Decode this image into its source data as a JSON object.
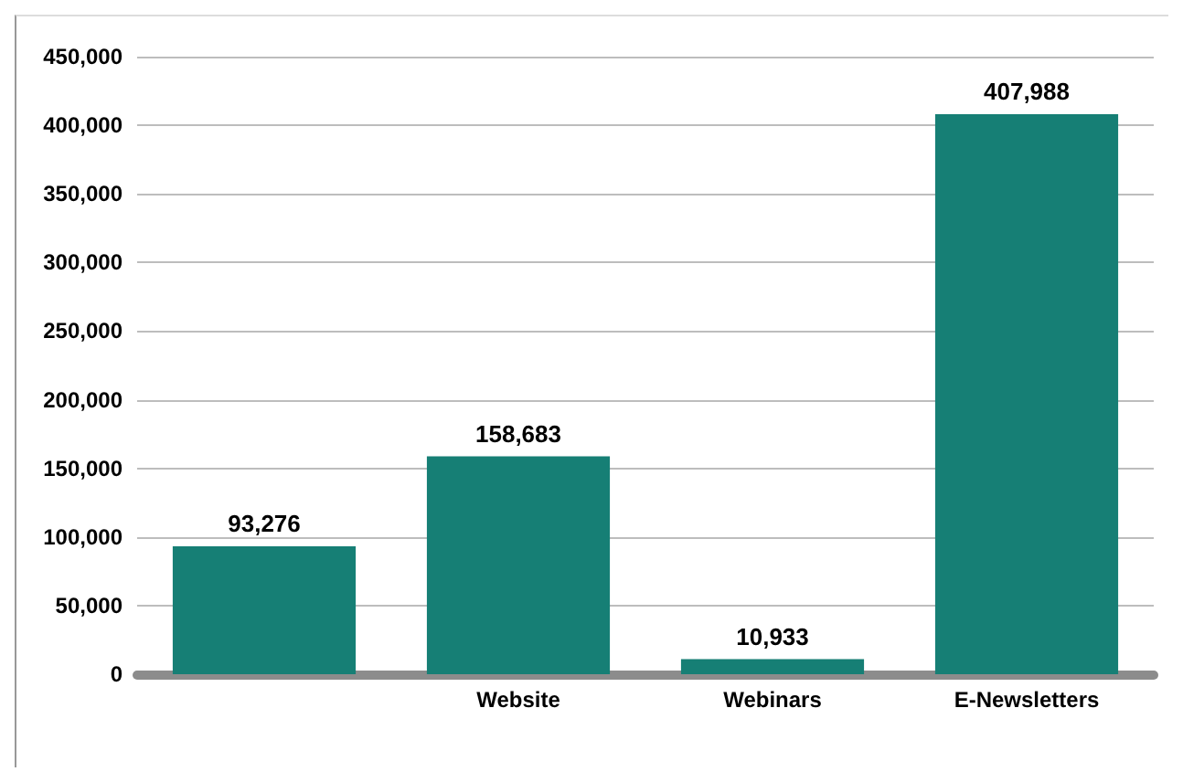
{
  "chart_data": {
    "type": "bar",
    "categories": [
      null,
      "Website",
      "Webinars",
      "E-Newsletters"
    ],
    "values": [
      93276,
      158683,
      10933,
      407988
    ],
    "value_labels": [
      "93,276",
      "158,683",
      "10,933",
      "407,988"
    ],
    "color": "#167f75",
    "ylim": [
      0,
      450000
    ],
    "yticks": [
      0,
      {
        "value": 50000,
        "label": "50,000"
      },
      {
        "value": 100000,
        "label": "100,000"
      },
      {
        "value": 150000,
        "label": "150,000"
      },
      {
        "value": 200000,
        "label": "200,000"
      },
      {
        "value": 250000,
        "label": "250,000"
      },
      {
        "value": 300000,
        "label": "300,000"
      },
      {
        "value": 350000,
        "label": "350,000"
      },
      {
        "value": 400000,
        "label": "400,000"
      },
      {
        "value": 450000,
        "label": "450,000"
      }
    ],
    "grid": "y"
  }
}
